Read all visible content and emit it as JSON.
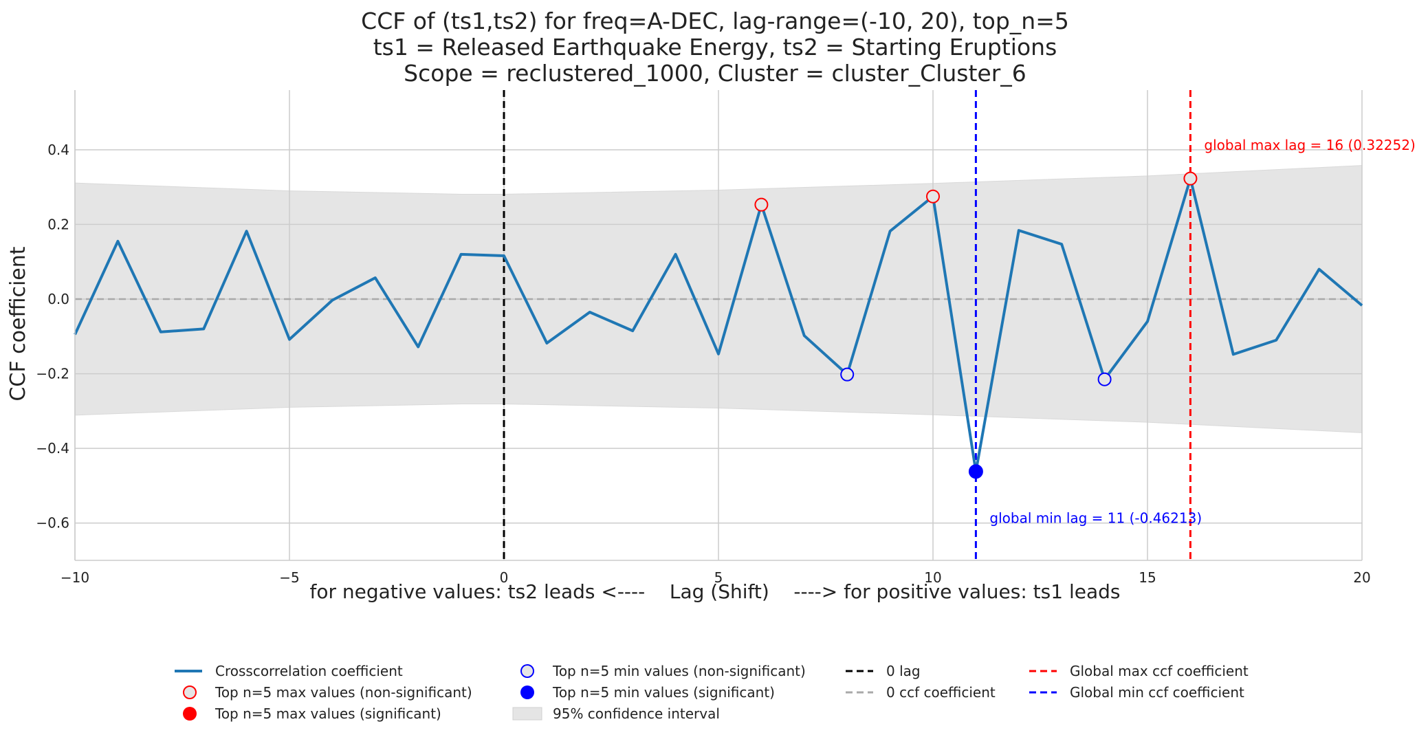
{
  "chart_data": {
    "type": "line",
    "title_lines": [
      "CCF of (ts1,ts2) for freq=A-DEC, lag-range=(-10, 20), top_n=5",
      "ts1 = Released Earthquake Energy, ts2 = Starting Eruptions",
      "Scope = reclustered_1000, Cluster = cluster_Cluster_6"
    ],
    "xlabel": "for negative values: ts2 leads <----    Lag (Shift)    ----> for positive values: ts1 leads",
    "ylabel": "CCF coefficient",
    "xlim": [
      -10,
      20
    ],
    "ylim": [
      -0.7,
      0.56
    ],
    "x_ticks": [
      -10,
      -5,
      0,
      5,
      10,
      15,
      20
    ],
    "x_tick_labels": [
      "−10",
      "−5",
      "0",
      "5",
      "10",
      "15",
      "20"
    ],
    "y_ticks": [
      -0.6,
      -0.4,
      -0.2,
      0.0,
      0.2,
      0.4
    ],
    "y_tick_labels": [
      "−0.6",
      "−0.4",
      "−0.2",
      "0.0",
      "0.2",
      "0.4"
    ],
    "grid": true,
    "series": [
      {
        "name": "Crosscorrelation coefficient",
        "color": "#1f77b4",
        "x": [
          -10,
          -9,
          -8,
          -7,
          -6,
          -5,
          -4,
          -3,
          -2,
          -1,
          0,
          1,
          2,
          3,
          4,
          5,
          6,
          7,
          8,
          9,
          10,
          11,
          12,
          13,
          14,
          15,
          16,
          17,
          18,
          19,
          20
        ],
        "values": [
          -0.095,
          0.155,
          -0.088,
          -0.08,
          0.182,
          -0.108,
          -0.003,
          0.057,
          -0.128,
          0.12,
          0.116,
          -0.118,
          -0.035,
          -0.085,
          0.12,
          -0.147,
          0.253,
          -0.098,
          -0.202,
          0.182,
          0.275,
          -0.462,
          0.184,
          0.147,
          -0.215,
          -0.06,
          0.323,
          -0.148,
          -0.11,
          0.08,
          -0.017
        ]
      }
    ],
    "confidence_interval": {
      "name": "95% confidence interval",
      "x": [
        -10,
        -5,
        -1,
        0,
        1,
        5,
        10,
        15,
        20
      ],
      "upper": [
        0.311,
        0.29,
        0.281,
        0.281,
        0.283,
        0.292,
        0.31,
        0.33,
        0.358
      ],
      "lower": [
        -0.311,
        -0.29,
        -0.281,
        -0.281,
        -0.283,
        -0.292,
        -0.31,
        -0.33,
        -0.358
      ]
    },
    "top_max_nonsig": {
      "x": [
        6,
        10,
        16
      ],
      "y": [
        0.253,
        0.275,
        0.323
      ]
    },
    "top_min_nonsig": {
      "x": [
        8,
        14
      ],
      "y": [
        -0.202,
        -0.215
      ]
    },
    "top_min_sig": {
      "x": [
        11
      ],
      "y": [
        -0.462
      ]
    },
    "zero_lag_x": 0,
    "zero_ccf_y": 0,
    "global_max": {
      "lag": 16,
      "value": 0.32252,
      "label": "global max lag = 16 (0.32252)"
    },
    "global_min": {
      "lag": 11,
      "value": -0.46213,
      "label": "global min lag = 11 (-0.46213)"
    },
    "legend_position": "bottom",
    "legend": [
      "Crosscorrelation coefficient",
      "Top n=5 max values (non-significant)",
      "Top n=5 max values (significant)",
      "Top n=5 min values (non-significant)",
      "Top n=5 min values (significant)",
      "95% confidence interval",
      "0 lag",
      "0 ccf coefficient",
      "Global max ccf coefficient",
      "Global min ccf coefficient"
    ],
    "colors": {
      "line": "#1f77b4",
      "max": "#ff0000",
      "min": "#0000ff",
      "zero_lag": "#000000",
      "zero_ccf": "#a9a9a9",
      "ci_fill": "#e5e5e5",
      "grid": "#cccccc"
    }
  }
}
